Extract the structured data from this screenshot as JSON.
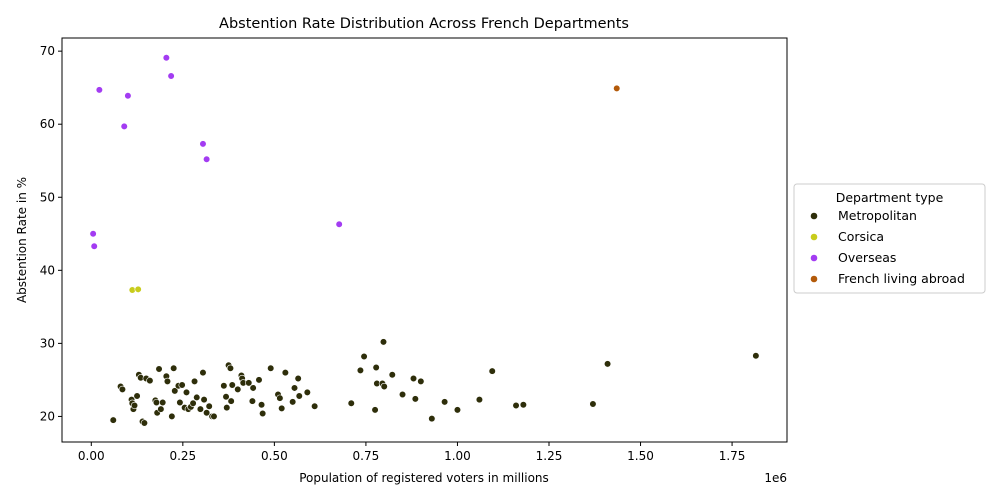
{
  "chart_data": {
    "type": "scatter",
    "title": "Abstention Rate Distribution Across French Departments",
    "xlabel": "Population of registered voters in millions",
    "ylabel": "Abstention Rate in %",
    "x_offset_label": "1e6",
    "xlim": [
      -80000,
      1900000
    ],
    "ylim": [
      16.5,
      71.8
    ],
    "x_ticks": [
      0,
      250000,
      500000,
      750000,
      1000000,
      1250000,
      1500000,
      1750000
    ],
    "x_tick_labels": [
      "0.00",
      "0.25",
      "0.50",
      "0.75",
      "1.00",
      "1.25",
      "1.50",
      "1.75"
    ],
    "y_ticks": [
      20,
      30,
      40,
      50,
      60,
      70
    ],
    "y_tick_labels": [
      "20",
      "30",
      "40",
      "50",
      "60",
      "70"
    ],
    "grid": false,
    "legend": {
      "title": "Department type",
      "placement": "outside-right",
      "entries": [
        "Metropolitan",
        "Corsica",
        "Overseas",
        "French living abroad"
      ]
    },
    "series": [
      {
        "name": "Metropolitan",
        "color": "#2e2e0a",
        "points": [
          [
            60000,
            19.5
          ],
          [
            80000,
            24.1
          ],
          [
            85000,
            23.7
          ],
          [
            110000,
            22.3
          ],
          [
            112000,
            21.8
          ],
          [
            115000,
            21.0
          ],
          [
            118000,
            21.5
          ],
          [
            125000,
            22.8
          ],
          [
            130000,
            25.7
          ],
          [
            135000,
            25.3
          ],
          [
            140000,
            19.3
          ],
          [
            145000,
            19.1
          ],
          [
            150000,
            25.2
          ],
          [
            160000,
            24.9
          ],
          [
            175000,
            22.2
          ],
          [
            178000,
            21.9
          ],
          [
            180000,
            20.5
          ],
          [
            185000,
            26.5
          ],
          [
            190000,
            21.0
          ],
          [
            195000,
            21.9
          ],
          [
            205000,
            25.5
          ],
          [
            208000,
            24.8
          ],
          [
            220000,
            20.0
          ],
          [
            225000,
            26.6
          ],
          [
            228000,
            23.5
          ],
          [
            238000,
            24.2
          ],
          [
            242000,
            21.9
          ],
          [
            248000,
            24.3
          ],
          [
            255000,
            21.2
          ],
          [
            260000,
            23.3
          ],
          [
            265000,
            21.0
          ],
          [
            272000,
            21.3
          ],
          [
            278000,
            21.8
          ],
          [
            282000,
            24.8
          ],
          [
            288000,
            22.6
          ],
          [
            298000,
            21.0
          ],
          [
            305000,
            26.0
          ],
          [
            308000,
            22.3
          ],
          [
            315000,
            20.5
          ],
          [
            322000,
            21.4
          ],
          [
            330000,
            20.0
          ],
          [
            335000,
            20.0
          ],
          [
            362000,
            24.2
          ],
          [
            368000,
            22.7
          ],
          [
            370000,
            21.2
          ],
          [
            375000,
            27.0
          ],
          [
            380000,
            26.6
          ],
          [
            382000,
            22.1
          ],
          [
            385000,
            24.3
          ],
          [
            400000,
            23.7
          ],
          [
            410000,
            25.6
          ],
          [
            412000,
            25.2
          ],
          [
            415000,
            24.6
          ],
          [
            430000,
            24.6
          ],
          [
            440000,
            22.1
          ],
          [
            442000,
            23.9
          ],
          [
            458000,
            25.0
          ],
          [
            465000,
            21.6
          ],
          [
            468000,
            20.4
          ],
          [
            490000,
            26.6
          ],
          [
            510000,
            23.0
          ],
          [
            515000,
            22.5
          ],
          [
            520000,
            21.1
          ],
          [
            530000,
            26.0
          ],
          [
            550000,
            22.0
          ],
          [
            555000,
            23.9
          ],
          [
            565000,
            25.2
          ],
          [
            568000,
            22.8
          ],
          [
            590000,
            23.3
          ],
          [
            610000,
            21.4
          ],
          [
            710000,
            21.8
          ],
          [
            735000,
            26.3
          ],
          [
            745000,
            28.2
          ],
          [
            775000,
            20.9
          ],
          [
            778000,
            26.7
          ],
          [
            780000,
            24.5
          ],
          [
            795000,
            24.5
          ],
          [
            798000,
            30.2
          ],
          [
            800000,
            24.1
          ],
          [
            822000,
            25.7
          ],
          [
            850000,
            23.0
          ],
          [
            880000,
            25.2
          ],
          [
            885000,
            22.4
          ],
          [
            900000,
            24.8
          ],
          [
            930000,
            19.7
          ],
          [
            965000,
            22.0
          ],
          [
            1000000,
            20.9
          ],
          [
            1060000,
            22.3
          ],
          [
            1095000,
            26.2
          ],
          [
            1160000,
            21.5
          ],
          [
            1180000,
            21.6
          ],
          [
            1370000,
            21.7
          ],
          [
            1410000,
            27.2
          ],
          [
            1815000,
            28.3
          ]
        ]
      },
      {
        "name": "Corsica",
        "color": "#c8cc1c",
        "points": [
          [
            112000,
            37.3
          ],
          [
            128000,
            37.4
          ]
        ]
      },
      {
        "name": "Overseas",
        "color": "#a33cf2",
        "points": [
          [
            5000,
            45.0
          ],
          [
            8000,
            43.3
          ],
          [
            22000,
            64.7
          ],
          [
            90000,
            59.7
          ],
          [
            100000,
            63.9
          ],
          [
            205000,
            69.1
          ],
          [
            218000,
            66.6
          ],
          [
            305000,
            57.3
          ],
          [
            315000,
            55.2
          ],
          [
            677000,
            46.3
          ]
        ]
      },
      {
        "name": "French living abroad",
        "color": "#b35a0a",
        "points": [
          [
            1435000,
            64.9
          ]
        ]
      }
    ]
  }
}
